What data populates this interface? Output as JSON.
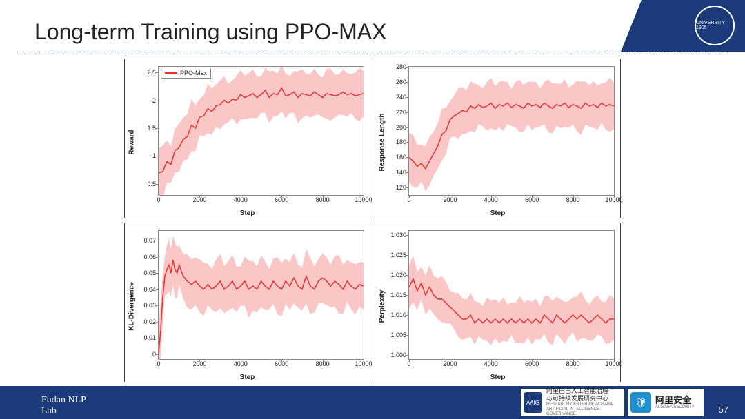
{
  "slide": {
    "title": "Long-term Training using PPO-MAX",
    "page_number": "57",
    "footer_label": "Fudan NLP\nLab",
    "logo_text": "UNIVERSITY 1905"
  },
  "sponsors": [
    {
      "icon_bg": "#1a3a7a",
      "icon_text": "AAIG",
      "main": "阿里巴巴人工智能治理\n与可持续发展研究中心",
      "sub": "RESEARCH CENTER OF ALIBABA\nARTIFICIAL INTELLIGENCE GOVERNANCE"
    },
    {
      "icon_bg": "#2090d0",
      "icon_text": "🛡",
      "main": "阿里安全",
      "sub": "ALIBABA SECURITY"
    }
  ],
  "legend_label": "PPO-Max",
  "colors": {
    "line": "#e83030",
    "band": "#f9bcbc",
    "axis": "#888888",
    "accent": "#1a3a7a"
  },
  "charts": [
    {
      "ylabel": "Reward",
      "xlabel": "Step",
      "xlim": [
        0,
        10000
      ],
      "xtick_step": 2000,
      "ylim": [
        0.3,
        2.6
      ],
      "yticks": [
        0.5,
        1.0,
        1.5,
        2.0,
        2.5
      ],
      "show_legend": true,
      "line": [
        [
          0,
          0.7
        ],
        [
          200,
          0.72
        ],
        [
          400,
          0.9
        ],
        [
          600,
          0.85
        ],
        [
          800,
          1.1
        ],
        [
          1000,
          1.15
        ],
        [
          1200,
          1.3
        ],
        [
          1400,
          1.35
        ],
        [
          1600,
          1.55
        ],
        [
          1800,
          1.5
        ],
        [
          2000,
          1.7
        ],
        [
          2200,
          1.72
        ],
        [
          2400,
          1.85
        ],
        [
          2600,
          1.8
        ],
        [
          2800,
          1.9
        ],
        [
          3000,
          1.92
        ],
        [
          3200,
          2.0
        ],
        [
          3400,
          1.95
        ],
        [
          3600,
          2.02
        ],
        [
          3800,
          2.0
        ],
        [
          4000,
          2.1
        ],
        [
          4200,
          2.05
        ],
        [
          4400,
          2.08
        ],
        [
          4600,
          2.12
        ],
        [
          4800,
          2.05
        ],
        [
          5000,
          2.1
        ],
        [
          5200,
          2.18
        ],
        [
          5400,
          2.05
        ],
        [
          5600,
          2.12
        ],
        [
          5800,
          2.1
        ],
        [
          6000,
          2.22
        ],
        [
          6200,
          2.08
        ],
        [
          6400,
          2.1
        ],
        [
          6600,
          2.15
        ],
        [
          6800,
          2.05
        ],
        [
          7000,
          2.12
        ],
        [
          7200,
          2.1
        ],
        [
          7400,
          2.08
        ],
        [
          7600,
          2.15
        ],
        [
          7800,
          2.1
        ],
        [
          8000,
          2.05
        ],
        [
          8200,
          2.12
        ],
        [
          8400,
          2.1
        ],
        [
          8600,
          2.08
        ],
        [
          8800,
          2.1
        ],
        [
          9000,
          2.15
        ],
        [
          9200,
          2.1
        ],
        [
          9400,
          2.12
        ],
        [
          9600,
          2.08
        ],
        [
          9800,
          2.1
        ],
        [
          10000,
          2.12
        ]
      ],
      "band_w": 0.4
    },
    {
      "ylabel": "Response Length",
      "xlabel": "Step",
      "xlim": [
        0,
        10000
      ],
      "xtick_step": 2000,
      "ylim": [
        110,
        280
      ],
      "yticks": [
        120,
        140,
        160,
        180,
        200,
        220,
        240,
        260,
        280
      ],
      "line": [
        [
          0,
          160
        ],
        [
          200,
          155
        ],
        [
          400,
          148
        ],
        [
          600,
          152
        ],
        [
          800,
          145
        ],
        [
          1000,
          155
        ],
        [
          1200,
          165
        ],
        [
          1400,
          175
        ],
        [
          1600,
          190
        ],
        [
          1800,
          195
        ],
        [
          2000,
          210
        ],
        [
          2200,
          215
        ],
        [
          2400,
          218
        ],
        [
          2600,
          222
        ],
        [
          2800,
          220
        ],
        [
          3000,
          228
        ],
        [
          3200,
          225
        ],
        [
          3400,
          230
        ],
        [
          3600,
          226
        ],
        [
          3800,
          228
        ],
        [
          4000,
          232
        ],
        [
          4200,
          225
        ],
        [
          4400,
          230
        ],
        [
          4600,
          228
        ],
        [
          4800,
          232
        ],
        [
          5000,
          226
        ],
        [
          5200,
          230
        ],
        [
          5400,
          228
        ],
        [
          5600,
          225
        ],
        [
          5800,
          232
        ],
        [
          6000,
          228
        ],
        [
          6200,
          230
        ],
        [
          6400,
          226
        ],
        [
          6600,
          232
        ],
        [
          6800,
          228
        ],
        [
          7000,
          225
        ],
        [
          7200,
          230
        ],
        [
          7400,
          228
        ],
        [
          7600,
          232
        ],
        [
          7800,
          226
        ],
        [
          8000,
          230
        ],
        [
          8200,
          228
        ],
        [
          8400,
          225
        ],
        [
          8600,
          232
        ],
        [
          8800,
          228
        ],
        [
          9000,
          230
        ],
        [
          9200,
          226
        ],
        [
          9400,
          232
        ],
        [
          9600,
          228
        ],
        [
          9800,
          230
        ],
        [
          10000,
          228
        ]
      ],
      "band_w": 30
    },
    {
      "ylabel": "KL-Divergence",
      "xlabel": "Step",
      "xlim": [
        0,
        10000
      ],
      "xtick_step": 2000,
      "ylim": [
        -0.003,
        0.076
      ],
      "yticks": [
        0.0,
        0.01,
        0.02,
        0.03,
        0.04,
        0.05,
        0.06,
        0.07
      ],
      "line": [
        [
          0,
          0.0
        ],
        [
          100,
          0.015
        ],
        [
          200,
          0.035
        ],
        [
          300,
          0.048
        ],
        [
          400,
          0.052
        ],
        [
          500,
          0.055
        ],
        [
          600,
          0.05
        ],
        [
          700,
          0.058
        ],
        [
          800,
          0.052
        ],
        [
          900,
          0.05
        ],
        [
          1000,
          0.055
        ],
        [
          1200,
          0.048
        ],
        [
          1400,
          0.045
        ],
        [
          1600,
          0.043
        ],
        [
          1800,
          0.045
        ],
        [
          2000,
          0.042
        ],
        [
          2200,
          0.04
        ],
        [
          2400,
          0.043
        ],
        [
          2600,
          0.04
        ],
        [
          2800,
          0.042
        ],
        [
          3000,
          0.045
        ],
        [
          3200,
          0.04
        ],
        [
          3400,
          0.042
        ],
        [
          3600,
          0.045
        ],
        [
          3800,
          0.04
        ],
        [
          4000,
          0.042
        ],
        [
          4200,
          0.045
        ],
        [
          4400,
          0.04
        ],
        [
          4600,
          0.042
        ],
        [
          4800,
          0.04
        ],
        [
          5000,
          0.045
        ],
        [
          5200,
          0.042
        ],
        [
          5400,
          0.04
        ],
        [
          5600,
          0.045
        ],
        [
          5800,
          0.042
        ],
        [
          6000,
          0.04
        ],
        [
          6200,
          0.045
        ],
        [
          6400,
          0.042
        ],
        [
          6600,
          0.047
        ],
        [
          6800,
          0.042
        ],
        [
          7000,
          0.04
        ],
        [
          7200,
          0.048
        ],
        [
          7400,
          0.042
        ],
        [
          7600,
          0.04
        ],
        [
          7800,
          0.045
        ],
        [
          8000,
          0.047
        ],
        [
          8200,
          0.045
        ],
        [
          8400,
          0.042
        ],
        [
          8600,
          0.045
        ],
        [
          8800,
          0.043
        ],
        [
          9000,
          0.04
        ],
        [
          9200,
          0.045
        ],
        [
          9400,
          0.042
        ],
        [
          9600,
          0.04
        ],
        [
          9800,
          0.043
        ],
        [
          10000,
          0.042
        ]
      ],
      "band_w": 0.015
    },
    {
      "ylabel": "Perplexity",
      "xlabel": "Step",
      "xlim": [
        0,
        10000
      ],
      "xtick_step": 2000,
      "ylim": [
        0.999,
        1.031
      ],
      "yticks": [
        1.0,
        1.005,
        1.01,
        1.015,
        1.02,
        1.025,
        1.03
      ],
      "ytick_fmt": 3,
      "line": [
        [
          0,
          1.017
        ],
        [
          200,
          1.019
        ],
        [
          400,
          1.016
        ],
        [
          600,
          1.018
        ],
        [
          800,
          1.015
        ],
        [
          1000,
          1.017
        ],
        [
          1200,
          1.015
        ],
        [
          1400,
          1.014
        ],
        [
          1600,
          1.014
        ],
        [
          1800,
          1.013
        ],
        [
          2000,
          1.012
        ],
        [
          2200,
          1.011
        ],
        [
          2400,
          1.01
        ],
        [
          2600,
          1.009
        ],
        [
          2800,
          1.009
        ],
        [
          3000,
          1.01
        ],
        [
          3200,
          1.008
        ],
        [
          3400,
          1.009
        ],
        [
          3600,
          1.008
        ],
        [
          3800,
          1.009
        ],
        [
          4000,
          1.008
        ],
        [
          4200,
          1.009
        ],
        [
          4400,
          1.008
        ],
        [
          4600,
          1.009
        ],
        [
          4800,
          1.008
        ],
        [
          5000,
          1.009
        ],
        [
          5200,
          1.008
        ],
        [
          5400,
          1.009
        ],
        [
          5600,
          1.008
        ],
        [
          5800,
          1.009
        ],
        [
          6000,
          1.008
        ],
        [
          6200,
          1.009
        ],
        [
          6400,
          1.008
        ],
        [
          6600,
          1.01
        ],
        [
          6800,
          1.009
        ],
        [
          7000,
          1.008
        ],
        [
          7200,
          1.01
        ],
        [
          7400,
          1.009
        ],
        [
          7600,
          1.008
        ],
        [
          7800,
          1.009
        ],
        [
          8000,
          1.01
        ],
        [
          8200,
          1.009
        ],
        [
          8400,
          1.01
        ],
        [
          8600,
          1.009
        ],
        [
          8800,
          1.008
        ],
        [
          9000,
          1.009
        ],
        [
          9200,
          1.01
        ],
        [
          9400,
          1.009
        ],
        [
          9600,
          1.008
        ],
        [
          9800,
          1.009
        ],
        [
          10000,
          1.009
        ]
      ],
      "band_w": 0.005
    }
  ]
}
